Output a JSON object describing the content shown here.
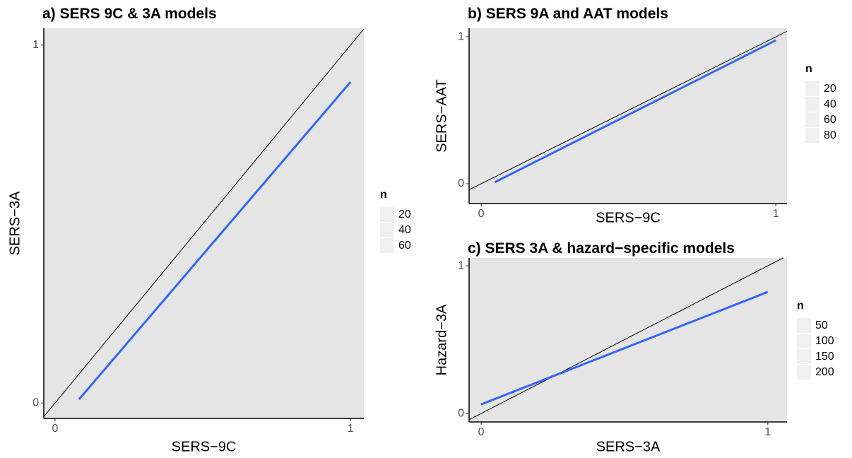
{
  "chart_data": [
    {
      "type": "line",
      "title": "a) SERS 9C & 3A models",
      "x_label": "SERS−9C",
      "y_label": "SERS−3A",
      "x": [
        0.081,
        1.0
      ],
      "series": [
        {
          "color": "#3366ff",
          "values": [
            0.01,
            0.897
          ]
        }
      ],
      "diagonal": true,
      "diagonal_color": "#000000",
      "xlim": [
        -0.038,
        1.045
      ],
      "ylim": [
        -0.043,
        1.047
      ],
      "xticks": [
        0,
        1
      ],
      "yticks": [
        0,
        1
      ],
      "legend_title": "n",
      "legend_values": [
        20,
        40,
        60
      ]
    },
    {
      "type": "line",
      "title": "b) SERS 9A and AAT models",
      "x_label": "SERS−9C",
      "y_label": "SERS−AAT",
      "x": [
        0.046,
        1.0
      ],
      "series": [
        {
          "color": "#3366ff",
          "values": [
            0.01,
            0.976
          ]
        }
      ],
      "diagonal": true,
      "diagonal_color": "#000000",
      "xlim": [
        -0.041,
        1.038
      ],
      "ylim": [
        -0.135,
        1.058
      ],
      "xticks": [
        0,
        1
      ],
      "yticks": [
        0,
        1
      ],
      "legend_title": "n",
      "legend_values": [
        20,
        40,
        60,
        80
      ]
    },
    {
      "type": "line",
      "title": "c) SERS 3A & hazard−specific models",
      "x_label": "SERS−3A",
      "y_label": "Hazard−3A",
      "x": [
        0,
        1
      ],
      "series": [
        {
          "color": "#3366ff",
          "values": [
            0.062,
            0.823
          ]
        }
      ],
      "diagonal": true,
      "diagonal_color": "#000000",
      "xlim": [
        -0.042,
        1.067
      ],
      "ylim": [
        -0.057,
        1.053
      ],
      "xticks": [
        0,
        1
      ],
      "yticks": [
        0,
        1
      ],
      "legend_title": "n",
      "legend_values": [
        50,
        100,
        150,
        200
      ]
    }
  ]
}
